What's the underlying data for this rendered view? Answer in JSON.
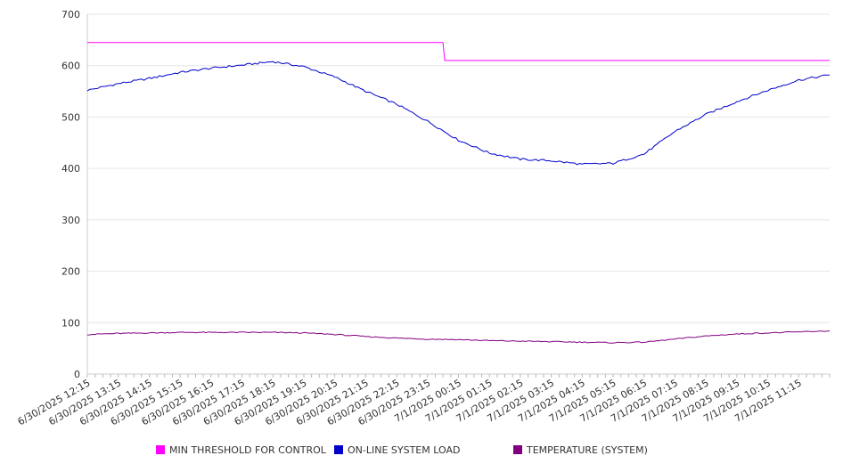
{
  "chart_data": {
    "type": "line",
    "title": "",
    "xlabel": "",
    "ylabel": "",
    "ylim": [
      0,
      700
    ],
    "yticks": [
      0,
      100,
      200,
      300,
      400,
      500,
      600,
      700
    ],
    "x_tick_labels": [
      "6/30/2025 12:15",
      "6/30/2025 13:15",
      "6/30/2025 14:15",
      "6/30/2025 15:15",
      "6/30/2025 16:15",
      "6/30/2025 17:15",
      "6/30/2025 18:15",
      "6/30/2025 19:15",
      "6/30/2025 20:15",
      "6/30/2025 21:15",
      "6/30/2025 22:15",
      "6/30/2025 23:15",
      "7/1/2025 00:15",
      "7/1/2025 01:15",
      "7/1/2025 02:15",
      "7/1/2025 03:15",
      "7/1/2025 04:15",
      "7/1/2025 05:15",
      "7/1/2025 06:15",
      "7/1/2025 07:15",
      "7/1/2025 08:15",
      "7/1/2025 09:15",
      "7/1/2025 10:15",
      "7/1/2025 11:15"
    ],
    "grid": true,
    "legend_position": "bottom",
    "series": [
      {
        "name": "MIN THRESHOLD FOR CONTROL",
        "color": "#ff00ff",
        "values": [
          645,
          645,
          645,
          645,
          645,
          645,
          645,
          645,
          645,
          645,
          645,
          645,
          610,
          610,
          610,
          610,
          610,
          610,
          610,
          610,
          610,
          610,
          610,
          610,
          610
        ]
      },
      {
        "name": "ON-LINE SYSTEM LOAD",
        "color": "#0000cc",
        "values": [
          552,
          565,
          575,
          587,
          595,
          601,
          608,
          598,
          578,
          550,
          525,
          492,
          455,
          430,
          418,
          415,
          408,
          410,
          428,
          472,
          505,
          530,
          552,
          572,
          582
        ]
      },
      {
        "name": "TEMPERATURE (SYSTEM)",
        "color": "#800080",
        "values": [
          77,
          79,
          80,
          81,
          81,
          81,
          81,
          80,
          77,
          73,
          70,
          68,
          67,
          65,
          64,
          63,
          62,
          61,
          62,
          68,
          74,
          78,
          80,
          82,
          84
        ]
      }
    ]
  }
}
